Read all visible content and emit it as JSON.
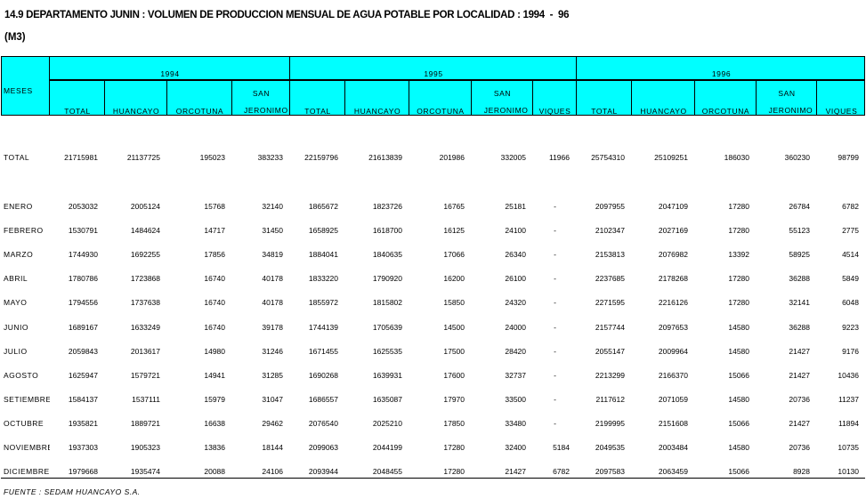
{
  "title": "14.9 DEPARTAMENTO JUNIN : VOLUMEN DE PRODUCCION MENSUAL DE AGUA POTABLE POR LOCALIDAD : 1994  -  96",
  "unit": "(M3)",
  "header": {
    "months_label": "MESES",
    "header_color": "#00ffff",
    "years": [
      {
        "year": "1994",
        "columns": [
          "TOTAL",
          "HUANCAYO",
          "ORCOTUNA",
          "SAN JERONIMO"
        ]
      },
      {
        "year": "1995",
        "columns": [
          "TOTAL",
          "HUANCAYO",
          "ORCOTUNA",
          "SAN JERONIMO",
          "VIQUES"
        ]
      },
      {
        "year": "1996",
        "columns": [
          "TOTAL",
          "HUANCAYO",
          "ORCOTUNA",
          "SAN JERONIMO",
          "VIQUES"
        ]
      }
    ]
  },
  "total_row": {
    "label": "TOTAL",
    "values": [
      "21715981",
      "21137725",
      "195023",
      "383233",
      "22159796",
      "21613839",
      "201986",
      "332005",
      "11966",
      "25754310",
      "25109251",
      "186030",
      "360230",
      "98799"
    ]
  },
  "rows": [
    {
      "label": "ENERO",
      "values": [
        "2053032",
        "2005124",
        "15768",
        "32140",
        "1865672",
        "1823726",
        "16765",
        "25181",
        "-",
        "2097955",
        "2047109",
        "17280",
        "26784",
        "6782"
      ]
    },
    {
      "label": "FEBRERO",
      "values": [
        "1530791",
        "1484624",
        "14717",
        "31450",
        "1658925",
        "1618700",
        "16125",
        "24100",
        "-",
        "2102347",
        "2027169",
        "17280",
        "55123",
        "2775"
      ]
    },
    {
      "label": "MARZO",
      "values": [
        "1744930",
        "1692255",
        "17856",
        "34819",
        "1884041",
        "1840635",
        "17066",
        "26340",
        "-",
        "2153813",
        "2076982",
        "13392",
        "58925",
        "4514"
      ]
    },
    {
      "label": "ABRIL",
      "values": [
        "1780786",
        "1723868",
        "16740",
        "40178",
        "1833220",
        "1790920",
        "16200",
        "26100",
        "-",
        "2237685",
        "2178268",
        "17280",
        "36288",
        "5849"
      ]
    },
    {
      "label": "MAYO",
      "values": [
        "1794556",
        "1737638",
        "16740",
        "40178",
        "1855972",
        "1815802",
        "15850",
        "24320",
        "-",
        "2271595",
        "2216126",
        "17280",
        "32141",
        "6048"
      ]
    },
    {
      "label": "JUNIO",
      "values": [
        "1689167",
        "1633249",
        "16740",
        "39178",
        "1744139",
        "1705639",
        "14500",
        "24000",
        "-",
        "2157744",
        "2097653",
        "14580",
        "36288",
        "9223"
      ]
    },
    {
      "label": "JULIO",
      "values": [
        "2059843",
        "2013617",
        "14980",
        "31246",
        "1671455",
        "1625535",
        "17500",
        "28420",
        "-",
        "2055147",
        "2009964",
        "14580",
        "21427",
        "9176"
      ]
    },
    {
      "label": "AGOSTO",
      "values": [
        "1625947",
        "1579721",
        "14941",
        "31285",
        "1690268",
        "1639931",
        "17600",
        "32737",
        "-",
        "2213299",
        "2166370",
        "15066",
        "21427",
        "10436"
      ]
    },
    {
      "label": "SETIEMBRE",
      "values": [
        "1584137",
        "1537111",
        "15979",
        "31047",
        "1686557",
        "1635087",
        "17970",
        "33500",
        "-",
        "2117612",
        "2071059",
        "14580",
        "20736",
        "11237"
      ]
    },
    {
      "label": "OCTUBRE",
      "values": [
        "1935821",
        "1889721",
        "16638",
        "29462",
        "2076540",
        "2025210",
        "17850",
        "33480",
        "-",
        "2199995",
        "2151608",
        "15066",
        "21427",
        "11894"
      ]
    },
    {
      "label": "NOVIEMBRE",
      "values": [
        "1937303",
        "1905323",
        "13836",
        "18144",
        "2099063",
        "2044199",
        "17280",
        "32400",
        "5184",
        "2049535",
        "2003484",
        "14580",
        "20736",
        "10735"
      ]
    },
    {
      "label": "DICIEMBRE",
      "values": [
        "1979668",
        "1935474",
        "20088",
        "24106",
        "2093944",
        "2048455",
        "17280",
        "21427",
        "6782",
        "2097583",
        "2063459",
        "15066",
        "8928",
        "10130"
      ]
    }
  ],
  "source": "FUENTE : SEDAM HUANCAYO S.A."
}
